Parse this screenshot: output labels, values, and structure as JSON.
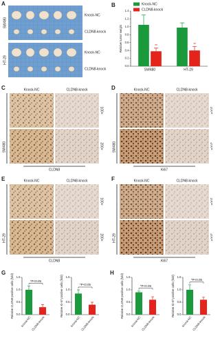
{
  "panels": {
    "A": {
      "label": "A",
      "rows": [
        {
          "cell_line": "SW480",
          "groups": [
            "Knock-NC",
            "CLDN8-knock"
          ]
        },
        {
          "cell_line": "HT-29",
          "groups": [
            "Knock-NC",
            "CLDN8-knock"
          ]
        }
      ]
    },
    "C": {
      "label": "C",
      "columns": [
        "Knock-NC",
        "CLDN8-knock"
      ],
      "magnifications": [
        "100×",
        "200×"
      ],
      "cell_line": "SW480",
      "stain": "CLDN8"
    },
    "D": {
      "label": "D",
      "columns": [
        "Knock-NC",
        "CLDN8-knock"
      ],
      "magnifications": [
        "100×",
        "200×"
      ],
      "cell_line": "SW480",
      "stain": "Ki67"
    },
    "E": {
      "label": "E",
      "columns": [
        "Knock-NC",
        "CLDN8-knock"
      ],
      "magnifications": [
        "100×",
        "200×"
      ],
      "cell_line": "HT-29",
      "stain": "CLDN8"
    },
    "F": {
      "label": "F",
      "columns": [
        "Knock-NC",
        "CLDN8-knock"
      ],
      "magnifications": [
        "100×",
        "200×"
      ],
      "cell_line": "HT-29",
      "stain": "Ki67"
    }
  },
  "chart_data": [
    {
      "type": "bar",
      "panel": "B",
      "ylabel": "Relative tumor weight",
      "categories": [
        "SW480",
        "HT-29"
      ],
      "series": [
        {
          "name": "Knock-NC",
          "color": "#1a9a3c",
          "values": [
            1.05,
            0.98
          ],
          "errors": [
            0.25,
            0.12
          ]
        },
        {
          "name": "CLDN8-knock",
          "color": "#e3231c",
          "values": [
            0.38,
            0.4
          ],
          "errors": [
            0.08,
            0.1
          ],
          "annotations": [
            "**",
            "**"
          ]
        }
      ],
      "ylim": [
        0,
        1.4
      ],
      "yticks": [
        {
          "value": 0,
          "label": "0.0"
        },
        0.2,
        0.4,
        0.6,
        0.8,
        {
          "value": 1,
          "label": "1.0"
        },
        1.2,
        1.4
      ],
      "legend": "top-left"
    },
    {
      "type": "bar",
      "panel": "G",
      "ylabel": "Relative CLDN8-positive cells (fold)",
      "categories": [
        "Knock-NC",
        "CLDN8-knock"
      ],
      "series": [
        {
          "colors": [
            "#1a9a3c",
            "#e3231c"
          ],
          "values": [
            1.0,
            0.3
          ],
          "errors": [
            0.15,
            0.1
          ]
        }
      ],
      "annotation": "*P<0.05",
      "ylim": [
        0,
        1.5
      ],
      "yticks": [
        {
          "value": 0,
          "label": "0.0"
        },
        0.5,
        {
          "value": 1,
          "label": "1.0"
        },
        1.5
      ]
    },
    {
      "type": "bar",
      "ylabel": "Relative Ki-67 positive cells (fold)",
      "categories": [
        "Knock-NC",
        "CLDN8-knock"
      ],
      "series": [
        {
          "colors": [
            "#1a9a3c",
            "#e3231c"
          ],
          "values": [
            0.85,
            0.4
          ],
          "errors": [
            0.15,
            0.1
          ]
        }
      ],
      "annotation": "*P<0.05",
      "ylim": [
        0,
        1.5
      ],
      "yticks": [
        {
          "value": 0,
          "label": "0.0"
        },
        0.5,
        {
          "value": 1,
          "label": "1.0"
        },
        1.5
      ]
    },
    {
      "type": "bar",
      "panel": "H",
      "ylabel": "Relative CLDN8-positive cells (fold)",
      "categories": [
        "Knock-NC",
        "CLDN8-knock"
      ],
      "series": [
        {
          "colors": [
            "#1a9a3c",
            "#e3231c"
          ],
          "values": [
            0.9,
            0.6
          ],
          "errors": [
            0.05,
            0.12
          ]
        }
      ],
      "annotation": "*P<0.05",
      "ylim": [
        0,
        1.5
      ],
      "yticks": [
        {
          "value": 0,
          "label": "0.0"
        },
        0.5,
        {
          "value": 1,
          "label": "1.0"
        },
        1.5
      ]
    },
    {
      "type": "bar",
      "ylabel": "Relative Ki-67 positive cells (fold)",
      "categories": [
        "Knock-NC",
        "CLDN8-knock"
      ],
      "series": [
        {
          "colors": [
            "#1a9a3c",
            "#e3231c"
          ],
          "values": [
            1.0,
            0.6
          ],
          "errors": [
            0.2,
            0.1
          ]
        }
      ],
      "annotation": "*P<0.05",
      "ylim": [
        0,
        1.5
      ],
      "yticks": [
        {
          "value": 0,
          "label": "0.0"
        },
        0.5,
        {
          "value": 1,
          "label": "1.0"
        },
        1.5
      ]
    }
  ]
}
